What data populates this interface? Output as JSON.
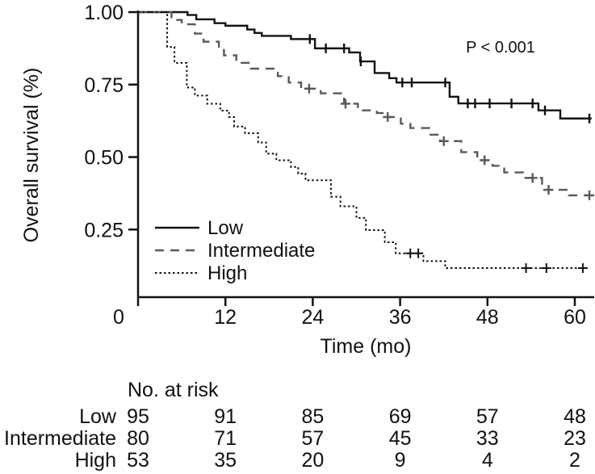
{
  "chart_data": {
    "type": "line",
    "subtype": "kaplan-meier-step",
    "title": "",
    "xlabel": "Time (mo)",
    "ylabel": "Overall survival (%)",
    "annotation": "P < 0.001",
    "xlim": [
      0,
      62.5
    ],
    "ylim": [
      0,
      1.0
    ],
    "grid": false,
    "legend_position": "inside-lower-left",
    "x_ticks": [
      0,
      12,
      24,
      36,
      48,
      60
    ],
    "y_ticks": [
      {
        "label": "1.00",
        "value": 1.0
      },
      {
        "label": "0.75",
        "value": 0.75
      },
      {
        "label": "0.50",
        "value": 0.5
      },
      {
        "label": "0.25",
        "value": 0.25
      }
    ],
    "series": [
      {
        "name": "Low",
        "style": "solid",
        "color": "#121212",
        "steps": [
          [
            0,
            1.0
          ],
          [
            6.8,
            0.99
          ],
          [
            8,
            0.975
          ],
          [
            10.5,
            0.962
          ],
          [
            12,
            0.953
          ],
          [
            15,
            0.94
          ],
          [
            16,
            0.928
          ],
          [
            17,
            0.918
          ],
          [
            21,
            0.907
          ],
          [
            24.3,
            0.875
          ],
          [
            29,
            0.861
          ],
          [
            30.5,
            0.83
          ],
          [
            32.5,
            0.79
          ],
          [
            34.5,
            0.772
          ],
          [
            35.5,
            0.757
          ],
          [
            42.8,
            0.708
          ],
          [
            44,
            0.685
          ],
          [
            55,
            0.661
          ],
          [
            58,
            0.633
          ]
        ],
        "end_time": 62.3,
        "censor_times": [
          23.6,
          25.8,
          28.3,
          30.6,
          36.3,
          37.6,
          42.2,
          45.3,
          46.3,
          48.3,
          51.3,
          54.2,
          55.9,
          62
        ]
      },
      {
        "name": "Intermediate",
        "style": "dashed",
        "color": "#595959",
        "steps": [
          [
            0,
            1.0
          ],
          [
            4.6,
            0.973
          ],
          [
            6,
            0.958
          ],
          [
            7.8,
            0.926
          ],
          [
            9,
            0.898
          ],
          [
            11.1,
            0.875
          ],
          [
            11.8,
            0.851
          ],
          [
            13.5,
            0.825
          ],
          [
            15.5,
            0.805
          ],
          [
            19.2,
            0.779
          ],
          [
            20.7,
            0.757
          ],
          [
            22.4,
            0.736
          ],
          [
            25.1,
            0.72
          ],
          [
            28.3,
            0.684
          ],
          [
            30.2,
            0.661
          ],
          [
            32.8,
            0.652
          ],
          [
            33.9,
            0.638
          ],
          [
            36.1,
            0.615
          ],
          [
            37.4,
            0.6
          ],
          [
            40,
            0.577
          ],
          [
            41.5,
            0.555
          ],
          [
            44.4,
            0.517
          ],
          [
            46.6,
            0.489
          ],
          [
            48.7,
            0.47
          ],
          [
            50.3,
            0.447
          ],
          [
            52.9,
            0.428
          ],
          [
            55.5,
            0.387
          ],
          [
            59.2,
            0.368
          ]
        ],
        "end_time": 62.3,
        "censor_times": [
          23.5,
          28.5,
          34.3,
          42,
          47.6,
          54.2,
          56.4,
          62
        ]
      },
      {
        "name": "High",
        "style": "dotted",
        "color": "#121212",
        "steps": [
          [
            0,
            1.0
          ],
          [
            4,
            0.88
          ],
          [
            5,
            0.825
          ],
          [
            6.7,
            0.74
          ],
          [
            7.8,
            0.712
          ],
          [
            9.5,
            0.684
          ],
          [
            11.3,
            0.66
          ],
          [
            12.5,
            0.638
          ],
          [
            13.2,
            0.605
          ],
          [
            14.7,
            0.582
          ],
          [
            16.5,
            0.55
          ],
          [
            17.6,
            0.512
          ],
          [
            19,
            0.489
          ],
          [
            21,
            0.466
          ],
          [
            22,
            0.443
          ],
          [
            23,
            0.42
          ],
          [
            26.5,
            0.363
          ],
          [
            27.8,
            0.33
          ],
          [
            30,
            0.29
          ],
          [
            31.3,
            0.248
          ],
          [
            33.9,
            0.206
          ],
          [
            35.4,
            0.168
          ],
          [
            39.2,
            0.141
          ],
          [
            42.2,
            0.117
          ]
        ],
        "end_time": 61.5,
        "censor_times": [
          37.4,
          38.5,
          53.3,
          56.1,
          61.1
        ]
      }
    ],
    "at_risk": {
      "header": "No. at risk",
      "times": [
        0,
        12,
        24,
        36,
        48,
        60
      ],
      "rows": [
        {
          "label": "Low",
          "values": [
            95,
            91,
            85,
            69,
            57,
            48
          ]
        },
        {
          "label": "Intermediate",
          "values": [
            80,
            71,
            57,
            45,
            33,
            23
          ]
        },
        {
          "label": "High",
          "values": [
            53,
            35,
            20,
            9,
            4,
            2
          ]
        }
      ]
    }
  }
}
